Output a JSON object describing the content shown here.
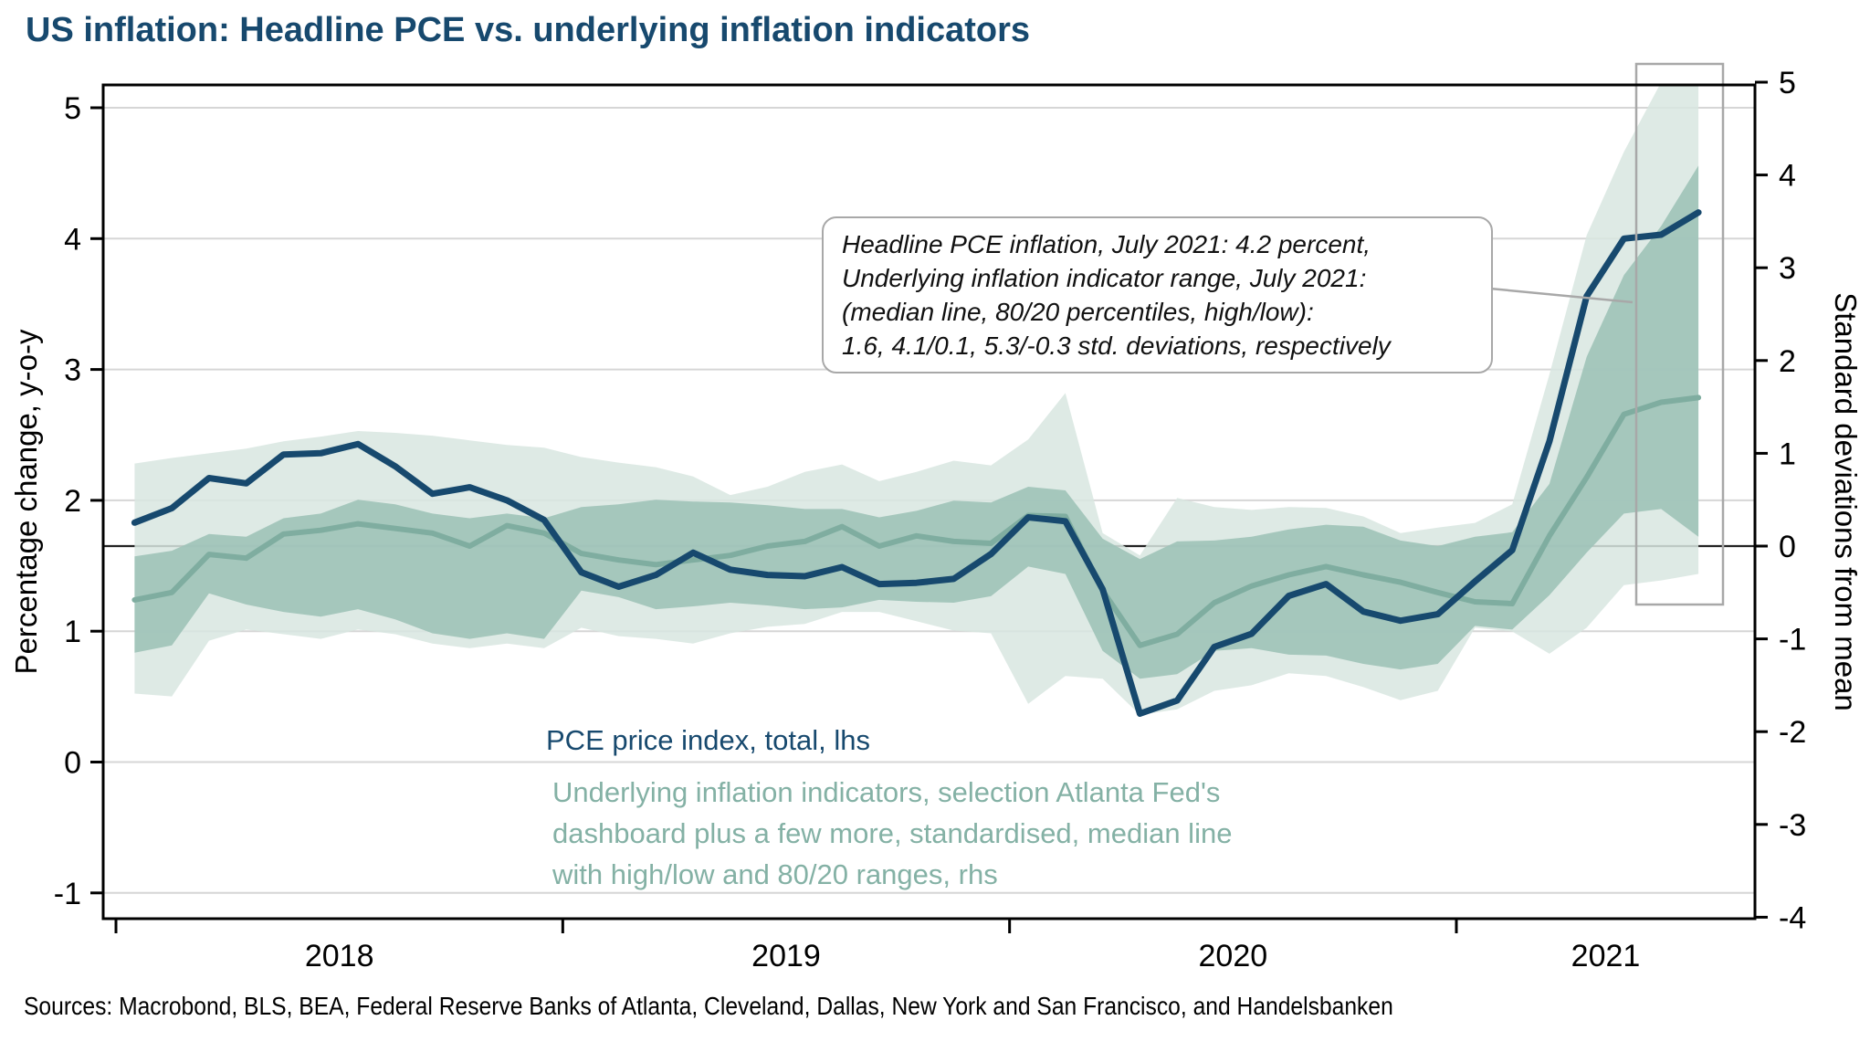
{
  "title": "US inflation: Headline PCE vs. underlying inflation indicators",
  "sources": "Sources: Macrobond, BLS, BEA, Federal Reserve Banks of Atlanta, Cleveland, Dallas, New York and San Francisco, and Handelsbanken",
  "legend": {
    "pce_label": "PCE price index, total, lhs",
    "underlying_lines": [
      "Underlying inflation indicators, selection Atlanta Fed's",
      "dashboard plus a few more, standardised, median line",
      "with high/low and 80/20 ranges, rhs"
    ]
  },
  "annotation": {
    "lines": [
      "Headline PCE inflation, July 2021: 4.2 percent,",
      "Underlying inflation indicator range, July 2021:",
      "(median line, 80/20 percentiles, high/low):",
      "1.6, 4.1/0.1, 5.3/-0.3 std. deviations, respectively"
    ]
  },
  "colors": {
    "navy": "#17496e",
    "teal_line": "#7fada0",
    "teal_text": "#84b1a5",
    "band_light": "#d8e6e1",
    "band_dark": "#9fc3b9",
    "grid": "#d6d6d6",
    "zero_line": "#222222",
    "frame": "#000000",
    "gray_box": "#a8a8a8",
    "title_color": "#17496e"
  },
  "chart_data": {
    "type": "line",
    "title": "US inflation: Headline PCE vs. underlying inflation indicators",
    "left_axis": {
      "title": "Percentage change, y-o-y",
      "ticks": [
        5,
        4,
        3,
        2,
        1,
        0,
        -1
      ],
      "range_note": "left scale, percent"
    },
    "right_axis": {
      "title": "Standard deviations from mean",
      "ticks": [
        5,
        4,
        3,
        2,
        1,
        0,
        -1,
        -2,
        -3,
        -4
      ],
      "zero_line": true
    },
    "x_axis": {
      "year_tick_months": [
        0,
        12,
        24,
        36
      ],
      "year_labels": [
        "2018",
        "2019",
        "2020",
        "2021"
      ]
    },
    "grid": "horizontal-left-integers",
    "legend_position": "inside-bottom-center",
    "months": [
      "2018-01",
      "2018-02",
      "2018-03",
      "2018-04",
      "2018-05",
      "2018-06",
      "2018-07",
      "2018-08",
      "2018-09",
      "2018-10",
      "2018-11",
      "2018-12",
      "2019-01",
      "2019-02",
      "2019-03",
      "2019-04",
      "2019-05",
      "2019-06",
      "2019-07",
      "2019-08",
      "2019-09",
      "2019-10",
      "2019-11",
      "2019-12",
      "2020-01",
      "2020-02",
      "2020-03",
      "2020-04",
      "2020-05",
      "2020-06",
      "2020-07",
      "2020-08",
      "2020-09",
      "2020-10",
      "2020-11",
      "2020-12",
      "2021-01",
      "2021-02",
      "2021-03",
      "2021-04",
      "2021-05",
      "2021-06",
      "2021-07"
    ],
    "series": [
      {
        "name": "PCE price index, total, lhs",
        "axis": "left",
        "style": "line-navy",
        "values": [
          1.83,
          1.94,
          2.17,
          2.13,
          2.35,
          2.36,
          2.43,
          2.26,
          2.05,
          2.1,
          2.0,
          1.85,
          1.45,
          1.34,
          1.43,
          1.6,
          1.47,
          1.43,
          1.42,
          1.49,
          1.36,
          1.37,
          1.4,
          1.59,
          1.87,
          1.84,
          1.32,
          0.37,
          0.47,
          0.88,
          0.98,
          1.27,
          1.36,
          1.15,
          1.08,
          1.13,
          1.38,
          1.62,
          2.45,
          3.56,
          4.0,
          4.03,
          4.2
        ]
      },
      {
        "name": "Underlying inflation indicators, median, rhs",
        "axis": "right",
        "style": "line-teal",
        "values": [
          -0.58,
          -0.5,
          -0.09,
          -0.13,
          0.13,
          0.17,
          0.24,
          0.19,
          0.14,
          0.0,
          0.22,
          0.14,
          -0.08,
          -0.15,
          -0.2,
          -0.15,
          -0.1,
          0.0,
          0.05,
          0.21,
          0.0,
          0.11,
          0.05,
          0.03,
          0.33,
          0.32,
          -0.48,
          -1.07,
          -0.95,
          -0.61,
          -0.43,
          -0.31,
          -0.22,
          -0.31,
          -0.39,
          -0.5,
          -0.6,
          -0.62,
          0.11,
          0.74,
          1.42,
          1.55,
          1.6
        ]
      },
      {
        "name": "80th percentile, rhs",
        "axis": "right",
        "style": "band-dark-upper",
        "values": [
          -0.11,
          -0.05,
          0.13,
          0.1,
          0.3,
          0.35,
          0.5,
          0.45,
          0.35,
          0.3,
          0.35,
          0.3,
          0.42,
          0.45,
          0.5,
          0.48,
          0.47,
          0.44,
          0.4,
          0.4,
          0.31,
          0.38,
          0.49,
          0.47,
          0.64,
          0.6,
          0.08,
          -0.14,
          0.05,
          0.06,
          0.1,
          0.18,
          0.23,
          0.21,
          0.06,
          0.0,
          0.1,
          0.15,
          0.67,
          2.04,
          2.92,
          3.45,
          4.1
        ]
      },
      {
        "name": "20th percentile, rhs",
        "axis": "right",
        "style": "band-dark-lower",
        "values": [
          -1.15,
          -1.07,
          -0.51,
          -0.63,
          -0.71,
          -0.76,
          -0.68,
          -0.79,
          -0.94,
          -1.0,
          -0.94,
          -1.0,
          -0.48,
          -0.55,
          -0.68,
          -0.65,
          -0.61,
          -0.64,
          -0.68,
          -0.66,
          -0.58,
          -0.6,
          -0.61,
          -0.54,
          -0.22,
          -0.3,
          -1.13,
          -1.43,
          -1.38,
          -1.13,
          -1.1,
          -1.17,
          -1.18,
          -1.27,
          -1.33,
          -1.27,
          -0.86,
          -0.9,
          -0.53,
          -0.07,
          0.35,
          0.4,
          0.1
        ]
      },
      {
        "name": "High, rhs",
        "axis": "right",
        "style": "band-light-upper",
        "values": [
          0.89,
          0.95,
          1.0,
          1.05,
          1.13,
          1.18,
          1.24,
          1.22,
          1.19,
          1.14,
          1.09,
          1.06,
          0.96,
          0.9,
          0.85,
          0.75,
          0.55,
          0.64,
          0.8,
          0.88,
          0.7,
          0.8,
          0.92,
          0.87,
          1.15,
          1.65,
          0.14,
          -0.1,
          0.52,
          0.42,
          0.39,
          0.42,
          0.41,
          0.32,
          0.14,
          0.2,
          0.25,
          0.45,
          1.85,
          3.35,
          4.25,
          5.0,
          5.3
        ]
      },
      {
        "name": "Low, rhs",
        "axis": "right",
        "style": "band-light-lower",
        "values": [
          -1.59,
          -1.62,
          -1.02,
          -0.9,
          -0.95,
          -1.0,
          -0.9,
          -0.95,
          -1.05,
          -1.1,
          -1.05,
          -1.1,
          -0.88,
          -0.97,
          -1.0,
          -1.05,
          -0.94,
          -0.87,
          -0.84,
          -0.71,
          -0.71,
          -0.81,
          -0.91,
          -0.94,
          -1.7,
          -1.4,
          -1.43,
          -1.82,
          -1.76,
          -1.56,
          -1.5,
          -1.37,
          -1.4,
          -1.52,
          -1.66,
          -1.56,
          -0.88,
          -0.92,
          -1.16,
          -0.88,
          -0.42,
          -0.37,
          -0.3
        ]
      }
    ],
    "highlight_box": {
      "note": "gray rectangle highlighting May-Jul 2021"
    },
    "callout_values": {
      "pce_july_2021_pct": 4.2,
      "median_july_2021": 1.6,
      "p80_july_2021": 4.1,
      "p20_july_2021": 0.1,
      "high_july_2021": 5.3,
      "low_july_2021": -0.3
    }
  }
}
